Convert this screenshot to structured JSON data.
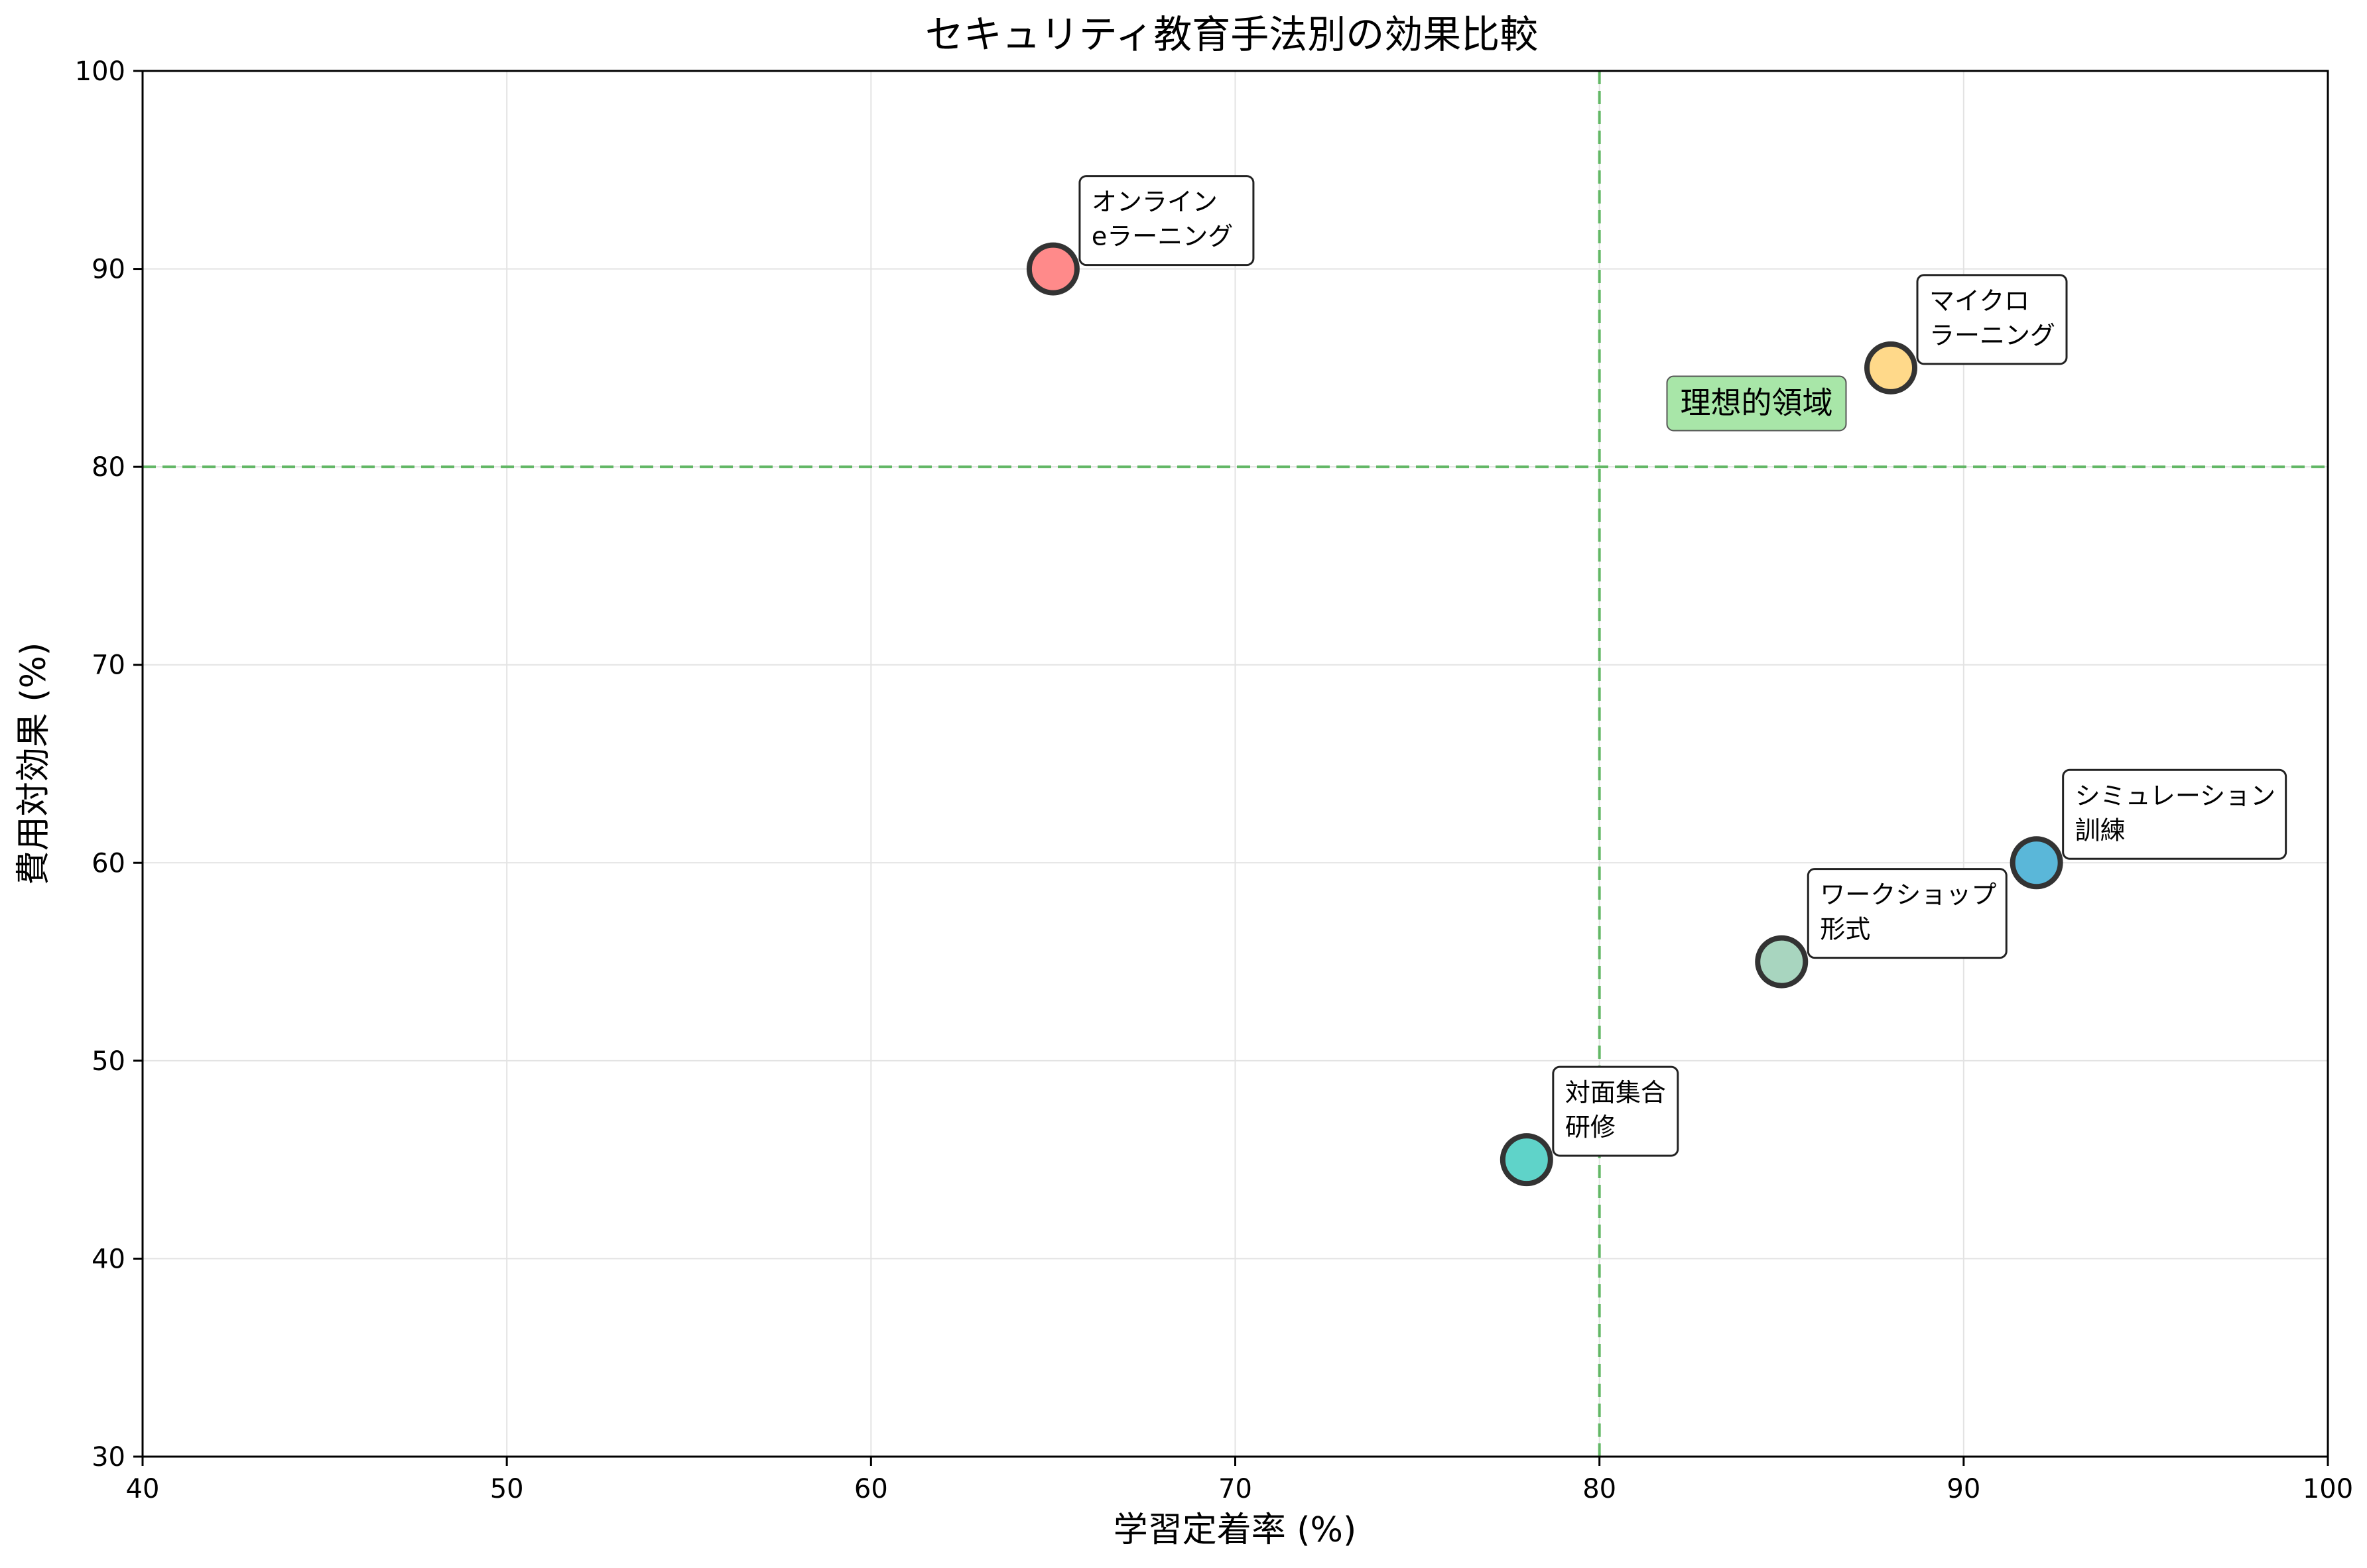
{
  "chart_data": {
    "type": "scatter",
    "title": "セキュリティ教育手法別の効果比較",
    "xlabel": "学習定着率 (%)",
    "ylabel": "費用対効果 (%)",
    "xlim": [
      40,
      100
    ],
    "ylim": [
      30,
      100
    ],
    "xticks": [
      40,
      50,
      60,
      70,
      80,
      90,
      100
    ],
    "yticks": [
      30,
      40,
      50,
      60,
      70,
      80,
      90,
      100
    ],
    "xtick_labels": [
      "40",
      "50",
      "60",
      "70",
      "80",
      "90",
      "100"
    ],
    "ytick_labels": [
      "30",
      "40",
      "50",
      "60",
      "70",
      "80",
      "90",
      "100"
    ],
    "grid": true,
    "reference_lines": {
      "x": 80,
      "y": 80,
      "color": "#4caf50",
      "style": "dashed"
    },
    "region_label": {
      "text": "理想的領域",
      "x": 82,
      "y": 82.5,
      "background": "#a8e6a8"
    },
    "points": [
      {
        "x": 65,
        "y": 90,
        "label_lines": [
          "オンライン",
          "eラーニング"
        ],
        "color": "#ff8a8a"
      },
      {
        "x": 88,
        "y": 85,
        "label_lines": [
          "マイクロ",
          "ラーニング"
        ],
        "color": "#ffd98a"
      },
      {
        "x": 92,
        "y": 60,
        "label_lines": [
          "シミュレーション",
          "訓練"
        ],
        "color": "#5ab7d9"
      },
      {
        "x": 85,
        "y": 55,
        "label_lines": [
          "ワークショップ",
          "形式"
        ],
        "color": "#a8d5bf"
      },
      {
        "x": 78,
        "y": 45,
        "label_lines": [
          "対面集合",
          "研修"
        ],
        "color": "#5fd3c9"
      }
    ]
  }
}
